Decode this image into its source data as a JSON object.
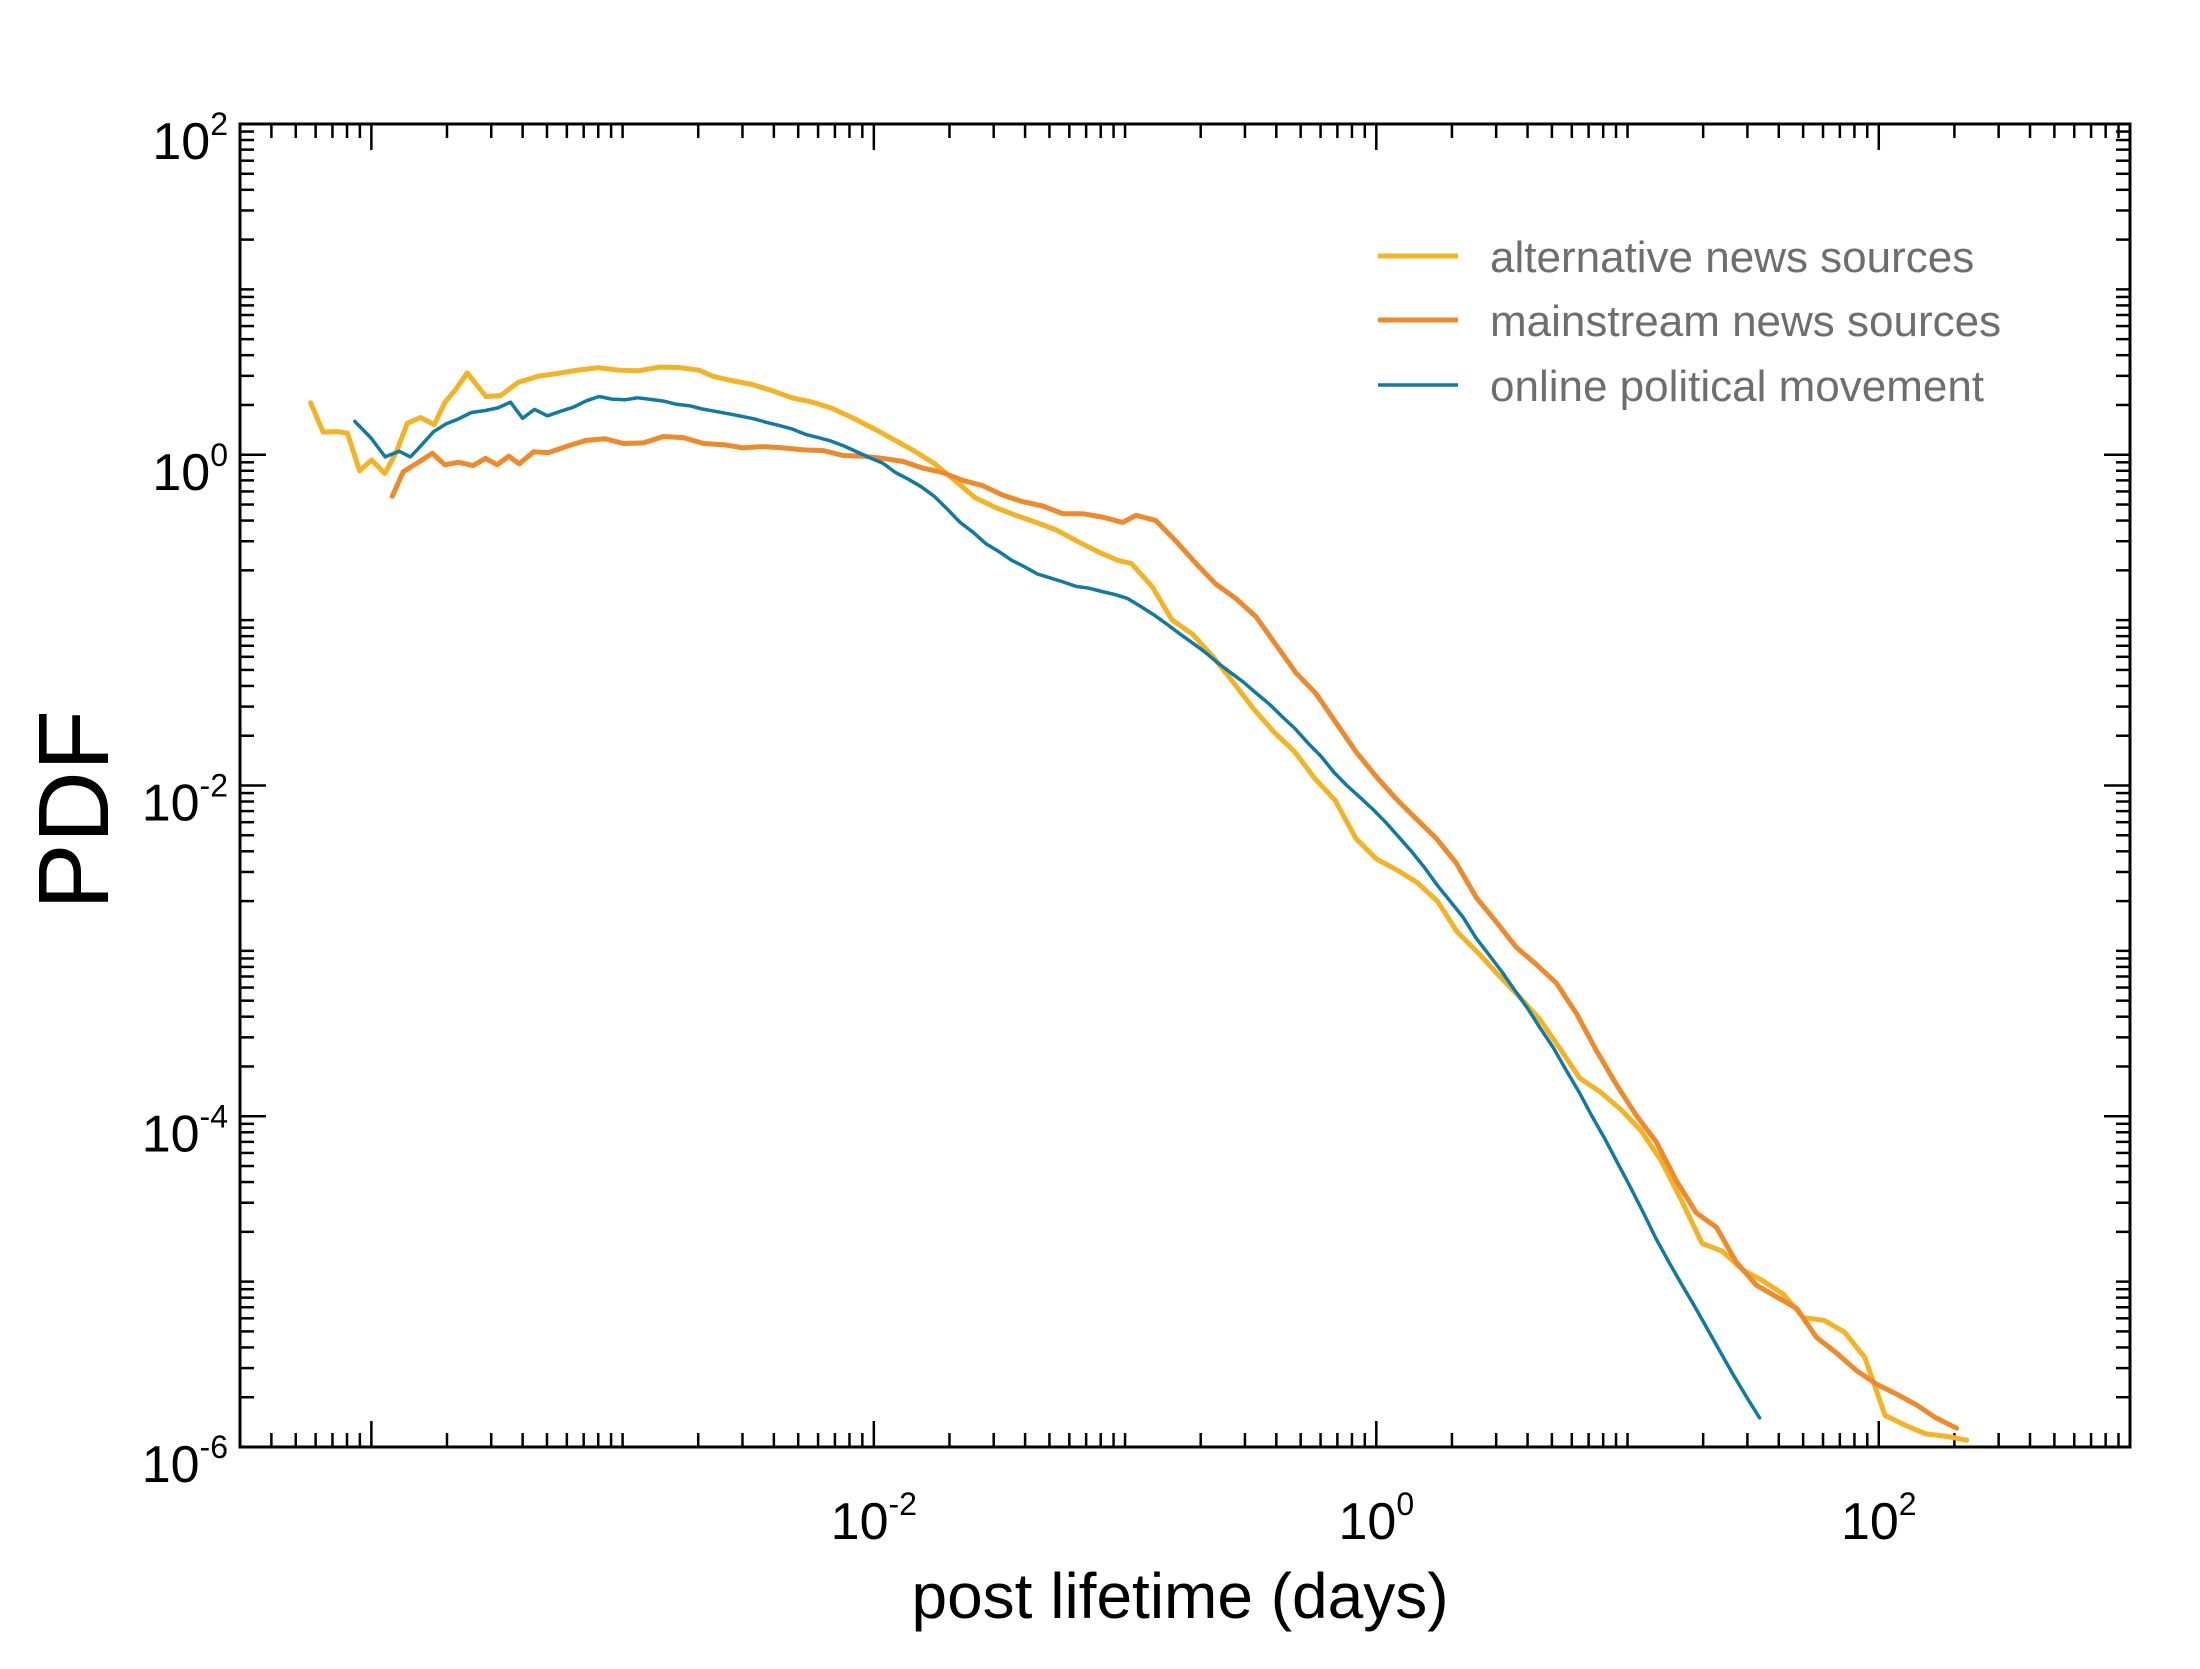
{
  "chart_data": {
    "type": "line",
    "title": "",
    "xlabel": "post lifetime (days)",
    "ylabel": "PDF",
    "xscale": "log",
    "yscale": "log",
    "xlim": [
      3e-05,
      1000
    ],
    "ylim": [
      1e-06,
      100
    ],
    "grid": false,
    "legend_position": "top-right",
    "x_ticks": [
      {
        "base": "10",
        "exp": "-2",
        "value": 0.01
      },
      {
        "base": "10",
        "exp": "0",
        "value": 1
      },
      {
        "base": "10",
        "exp": "2",
        "value": 100
      }
    ],
    "y_ticks": [
      {
        "base": "10",
        "exp": "-6",
        "value": 1e-06
      },
      {
        "base": "10",
        "exp": "-4",
        "value": 0.0001
      },
      {
        "base": "10",
        "exp": "-2",
        "value": 0.01
      },
      {
        "base": "10",
        "exp": "0",
        "value": 1
      },
      {
        "base": "10",
        "exp": "2",
        "value": 100
      }
    ],
    "series": [
      {
        "name": "alternative news sources",
        "color": "#f5b323",
        "width": 5,
        "points": [
          [
            5.73e-05,
            2.06
          ],
          [
            6.43e-05,
            1.37
          ],
          [
            7.31e-05,
            1.38
          ],
          [
            8.03e-05,
            1.35
          ],
          [
            8.98e-05,
            0.8
          ],
          [
            0.0001003,
            0.93
          ],
          [
            0.0001131,
            0.77
          ],
          [
            0.0001254,
            1.03
          ],
          [
            0.000139,
            1.55
          ],
          [
            0.000157,
            1.68
          ],
          [
            0.000178,
            1.52
          ],
          [
            0.000196,
            2.07
          ],
          [
            0.000216,
            2.47
          ],
          [
            0.000241,
            3.12
          ],
          [
            0.000286,
            2.25
          ],
          [
            0.000327,
            2.28
          ],
          [
            0.000384,
            2.74
          ],
          [
            0.000463,
            2.99
          ],
          [
            0.000551,
            3.1
          ],
          [
            0.000663,
            3.25
          ],
          [
            0.000801,
            3.36
          ],
          [
            0.000961,
            3.25
          ],
          [
            0.001158,
            3.22
          ],
          [
            0.001404,
            3.39
          ],
          [
            0.001665,
            3.37
          ],
          [
            0.00201,
            3.25
          ],
          [
            0.00229,
            2.98
          ],
          [
            0.00271,
            2.81
          ],
          [
            0.00328,
            2.66
          ],
          [
            0.00394,
            2.44
          ],
          [
            0.00472,
            2.21
          ],
          [
            0.0057,
            2.08
          ],
          [
            0.00681,
            1.91
          ],
          [
            0.00819,
            1.68
          ],
          [
            0.0099,
            1.45
          ],
          [
            0.01195,
            1.24
          ],
          [
            0.0144,
            1.06
          ],
          [
            0.0175,
            0.88
          ],
          [
            0.021,
            0.7
          ],
          [
            0.0253,
            0.55
          ],
          [
            0.0305,
            0.48
          ],
          [
            0.0368,
            0.43
          ],
          [
            0.0443,
            0.39
          ],
          [
            0.0534,
            0.35
          ],
          [
            0.0645,
            0.3
          ],
          [
            0.0777,
            0.26
          ],
          [
            0.0936,
            0.23
          ],
          [
            0.106,
            0.22
          ],
          [
            0.128,
            0.16
          ],
          [
            0.154,
            0.1
          ],
          [
            0.186,
            0.082
          ],
          [
            0.224,
            0.06
          ],
          [
            0.27,
            0.042
          ],
          [
            0.325,
            0.029
          ],
          [
            0.392,
            0.021
          ],
          [
            0.473,
            0.016
          ],
          [
            0.57,
            0.011
          ],
          [
            0.687,
            0.0081
          ],
          [
            0.828,
            0.0048
          ],
          [
            1.0,
            0.0036
          ],
          [
            1.2,
            0.0031
          ],
          [
            1.45,
            0.0026
          ],
          [
            1.75,
            0.002
          ],
          [
            2.1,
            0.0013
          ],
          [
            2.55,
            0.00097
          ],
          [
            3.05,
            0.00072
          ],
          [
            3.7,
            0.00053
          ],
          [
            4.45,
            0.00039
          ],
          [
            5.35,
            0.00026
          ],
          [
            6.45,
            0.00017
          ],
          [
            7.8,
            0.00014
          ],
          [
            9.4,
            0.00011
          ],
          [
            11.3,
            8.2e-05
          ],
          [
            13.6,
            5.4e-05
          ],
          [
            16.4,
            3.1e-05
          ],
          [
            19.8,
            1.7e-05
          ],
          [
            23.8,
            1.53e-05
          ],
          [
            28.7,
            1.18e-05
          ],
          [
            34.6,
            1.01e-05
          ],
          [
            41.7,
            8.4e-06
          ],
          [
            50.2,
            6.05e-06
          ],
          [
            60.5,
            5.84e-06
          ],
          [
            73.0,
            4.95e-06
          ],
          [
            88.0,
            3.48e-06
          ],
          [
            106.0,
            1.55e-06
          ],
          [
            128.0,
            1.35e-06
          ],
          [
            154.0,
            1.2e-06
          ],
          [
            186.0,
            1.16e-06
          ],
          [
            224.0,
            1.1e-06
          ]
        ]
      },
      {
        "name": "mainstream news sources",
        "color": "#f0892a",
        "width": 5,
        "points": [
          [
            0.000121,
            0.56
          ],
          [
            0.000134,
            0.79
          ],
          [
            0.000154,
            0.9
          ],
          [
            0.000175,
            1.02
          ],
          [
            0.000196,
            0.87
          ],
          [
            0.000222,
            0.9
          ],
          [
            0.000254,
            0.86
          ],
          [
            0.000285,
            0.95
          ],
          [
            0.000317,
            0.87
          ],
          [
            0.000352,
            0.98
          ],
          [
            0.000388,
            0.88
          ],
          [
            0.000442,
            1.04
          ],
          [
            0.000508,
            1.03
          ],
          [
            0.000605,
            1.13
          ],
          [
            0.000713,
            1.22
          ],
          [
            0.000849,
            1.25
          ],
          [
            0.001008,
            1.17
          ],
          [
            0.001212,
            1.18
          ],
          [
            0.001454,
            1.29
          ],
          [
            0.001746,
            1.27
          ],
          [
            0.0021,
            1.17
          ],
          [
            0.00252,
            1.15
          ],
          [
            0.00302,
            1.1
          ],
          [
            0.00362,
            1.12
          ],
          [
            0.00436,
            1.1
          ],
          [
            0.00524,
            1.07
          ],
          [
            0.00628,
            1.06
          ],
          [
            0.00754,
            0.99
          ],
          [
            0.00905,
            0.98
          ],
          [
            0.01087,
            0.95
          ],
          [
            0.01306,
            0.91
          ],
          [
            0.01568,
            0.83
          ],
          [
            0.01882,
            0.78
          ],
          [
            0.0226,
            0.7
          ],
          [
            0.02714,
            0.65
          ],
          [
            0.03259,
            0.57
          ],
          [
            0.03914,
            0.52
          ],
          [
            0.047,
            0.49
          ],
          [
            0.05645,
            0.44
          ],
          [
            0.06778,
            0.44
          ],
          [
            0.0814,
            0.42
          ],
          [
            0.09776,
            0.39
          ],
          [
            0.1106,
            0.43
          ],
          [
            0.1328,
            0.4
          ],
          [
            0.1595,
            0.3
          ],
          [
            0.1916,
            0.22
          ],
          [
            0.23,
            0.165
          ],
          [
            0.2763,
            0.135
          ],
          [
            0.3318,
            0.105
          ],
          [
            0.3985,
            0.071
          ],
          [
            0.4786,
            0.048
          ],
          [
            0.5748,
            0.036
          ],
          [
            0.6904,
            0.024
          ],
          [
            0.8293,
            0.016
          ],
          [
            1.0,
            0.0113
          ],
          [
            1.2,
            0.0083
          ],
          [
            1.44,
            0.0063
          ],
          [
            1.73,
            0.0048
          ],
          [
            2.08,
            0.0034
          ],
          [
            2.5,
            0.0021
          ],
          [
            3.0,
            0.0015
          ],
          [
            3.61,
            0.00105
          ],
          [
            4.33,
            0.00083
          ],
          [
            5.2,
            0.00064
          ],
          [
            6.25,
            0.00042
          ],
          [
            7.51,
            0.00025
          ],
          [
            9.02,
            0.000156
          ],
          [
            10.8,
            0.000102
          ],
          [
            13.0,
            7e-05
          ],
          [
            15.6,
            4.1e-05
          ],
          [
            18.8,
            2.6e-05
          ],
          [
            22.6,
            2.13e-05
          ],
          [
            27.1,
            1.31e-05
          ],
          [
            32.6,
            9.5e-06
          ],
          [
            39.2,
            8.1e-06
          ],
          [
            47.1,
            6.9e-06
          ],
          [
            56.5,
            4.6e-06
          ],
          [
            67.9,
            3.7e-06
          ],
          [
            81.5,
            2.9e-06
          ],
          [
            97.9,
            2.4e-06
          ],
          [
            117.0,
            2.1e-06
          ],
          [
            141.0,
            1.8e-06
          ],
          [
            169.0,
            1.5e-06
          ],
          [
            204.0,
            1.3e-06
          ]
        ]
      },
      {
        "name": "online political movement",
        "color": "#0f7aa6",
        "width": 3.5,
        "points": [
          [
            8.59e-05,
            1.59
          ],
          [
            9.94e-05,
            1.27
          ],
          [
            0.0001135,
            0.97
          ],
          [
            0.000129,
            1.05
          ],
          [
            0.000143,
            0.97
          ],
          [
            0.000158,
            1.14
          ],
          [
            0.000177,
            1.38
          ],
          [
            0.000199,
            1.54
          ],
          [
            0.000221,
            1.64
          ],
          [
            0.00025,
            1.8
          ],
          [
            0.000283,
            1.85
          ],
          [
            0.000319,
            1.92
          ],
          [
            0.000358,
            2.08
          ],
          [
            0.0004,
            1.66
          ],
          [
            0.000446,
            1.88
          ],
          [
            0.000502,
            1.72
          ],
          [
            0.000566,
            1.83
          ],
          [
            0.000637,
            1.94
          ],
          [
            0.000717,
            2.12
          ],
          [
            0.000806,
            2.25
          ],
          [
            0.000906,
            2.17
          ],
          [
            0.00102,
            2.15
          ],
          [
            0.001148,
            2.21
          ],
          [
            0.001293,
            2.16
          ],
          [
            0.001455,
            2.11
          ],
          [
            0.001637,
            2.02
          ],
          [
            0.001843,
            1.98
          ],
          [
            0.002074,
            1.89
          ],
          [
            0.002334,
            1.83
          ],
          [
            0.002627,
            1.77
          ],
          [
            0.002956,
            1.71
          ],
          [
            0.003327,
            1.65
          ],
          [
            0.003745,
            1.57
          ],
          [
            0.004214,
            1.5
          ],
          [
            0.004743,
            1.43
          ],
          [
            0.005338,
            1.33
          ],
          [
            0.006008,
            1.27
          ],
          [
            0.006761,
            1.21
          ],
          [
            0.007609,
            1.13
          ],
          [
            0.008564,
            1.04
          ],
          [
            0.009638,
            0.96
          ],
          [
            0.01085,
            0.89
          ],
          [
            0.01221,
            0.78
          ],
          [
            0.01374,
            0.71
          ],
          [
            0.01546,
            0.64
          ],
          [
            0.01741,
            0.56
          ],
          [
            0.01959,
            0.47
          ],
          [
            0.02205,
            0.39
          ],
          [
            0.02481,
            0.34
          ],
          [
            0.02793,
            0.29
          ],
          [
            0.03143,
            0.26
          ],
          [
            0.03537,
            0.23
          ],
          [
            0.03981,
            0.21
          ],
          [
            0.0448,
            0.19
          ],
          [
            0.05042,
            0.18
          ],
          [
            0.05675,
            0.17
          ],
          [
            0.06387,
            0.16
          ],
          [
            0.07188,
            0.156
          ],
          [
            0.0809,
            0.149
          ],
          [
            0.09104,
            0.143
          ],
          [
            0.1025,
            0.135
          ],
          [
            0.1153,
            0.121
          ],
          [
            0.1298,
            0.108
          ],
          [
            0.1461,
            0.095
          ],
          [
            0.1644,
            0.083
          ],
          [
            0.185,
            0.073
          ],
          [
            0.2082,
            0.064
          ],
          [
            0.2343,
            0.055
          ],
          [
            0.2637,
            0.048
          ],
          [
            0.2968,
            0.042
          ],
          [
            0.334,
            0.036
          ],
          [
            0.3759,
            0.031
          ],
          [
            0.4231,
            0.026
          ],
          [
            0.4761,
            0.022
          ],
          [
            0.5359,
            0.018
          ],
          [
            0.6031,
            0.015
          ],
          [
            0.6788,
            0.012
          ],
          [
            0.764,
            0.01
          ],
          [
            0.8598,
            0.0085
          ],
          [
            0.9677,
            0.0072
          ],
          [
            1.0891,
            0.006
          ],
          [
            1.2258,
            0.0049
          ],
          [
            1.3796,
            0.004
          ],
          [
            1.5526,
            0.0032
          ],
          [
            1.7474,
            0.0025
          ],
          [
            1.9667,
            0.002
          ],
          [
            2.2135,
            0.0016
          ],
          [
            2.4912,
            0.0012
          ],
          [
            2.8037,
            0.00095
          ],
          [
            3.1555,
            0.00075
          ],
          [
            3.5514,
            0.00058
          ],
          [
            3.997,
            0.00045
          ],
          [
            4.4985,
            0.00034
          ],
          [
            5.0629,
            0.00026
          ],
          [
            5.6981,
            0.00019
          ],
          [
            6.413,
            0.00014
          ],
          [
            7.2176,
            0.0001
          ],
          [
            8.1232,
            7.3e-05
          ],
          [
            9.1424,
            5.2e-05
          ],
          [
            10.29,
            3.7e-05
          ],
          [
            11.58,
            2.6e-05
          ],
          [
            13.03,
            1.8e-05
          ],
          [
            14.67,
            1.3e-05
          ],
          [
            16.51,
            9.5e-06
          ],
          [
            18.58,
            7e-06
          ],
          [
            20.91,
            5.1e-06
          ],
          [
            23.53,
            3.7e-06
          ],
          [
            26.49,
            2.7e-06
          ],
          [
            29.81,
            2e-06
          ],
          [
            33.55,
            1.5e-06
          ]
        ]
      }
    ]
  }
}
